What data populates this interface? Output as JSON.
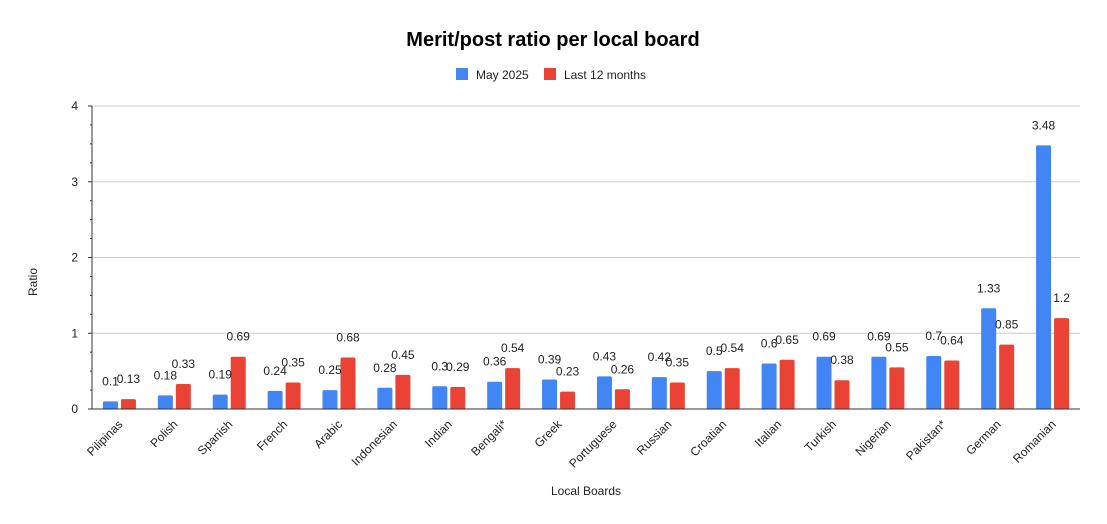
{
  "chart_data": {
    "type": "bar",
    "title": "Merit/post ratio per local board",
    "xlabel": "Local Boards",
    "ylabel": "Ratio",
    "ylim": [
      0,
      4
    ],
    "yticks": [
      "0",
      "1",
      "2",
      "3",
      "4"
    ],
    "grid": true,
    "legend_position": "top-center",
    "categories": [
      "Pilipinas",
      "Polish",
      "Spanish",
      "French",
      "Arabic",
      "Indonesian",
      "Indian",
      "Bengali*",
      "Greek",
      "Portuguese",
      "Russian",
      "Croatian",
      "Italian",
      "Turkish",
      "Nigerian",
      "Pakistan*",
      "German",
      "Romanian"
    ],
    "series": [
      {
        "name": "May 2025",
        "color": "#4285f4",
        "values": [
          0.1,
          0.18,
          0.19,
          0.24,
          0.25,
          0.28,
          0.3,
          0.36,
          0.39,
          0.43,
          0.42,
          0.5,
          0.6,
          0.69,
          0.69,
          0.7,
          1.33,
          3.48
        ],
        "labels": [
          "0.1",
          "0.18",
          "0.19",
          "0.24",
          "0.25",
          "0.28",
          "0.3",
          "0.36",
          "0.39",
          "0.43",
          "0.42",
          "0.5",
          "0.6",
          "0.69",
          "0.69",
          "0.7",
          "1.33",
          "3.48"
        ]
      },
      {
        "name": "Last 12 months",
        "color": "#ea4335",
        "values": [
          0.13,
          0.33,
          0.69,
          0.35,
          0.68,
          0.45,
          0.29,
          0.54,
          0.23,
          0.26,
          0.35,
          0.54,
          0.65,
          0.38,
          0.55,
          0.64,
          0.85,
          1.2
        ],
        "labels": [
          "0.13",
          "0.33",
          "0.69",
          "0.35",
          "0.68",
          "0.45",
          "0.29",
          "0.54",
          "0.23",
          "0.26",
          "0.35",
          "0.54",
          "0.65",
          "0.38",
          "0.55",
          "0.64",
          "0.85",
          "1.2"
        ]
      }
    ]
  }
}
